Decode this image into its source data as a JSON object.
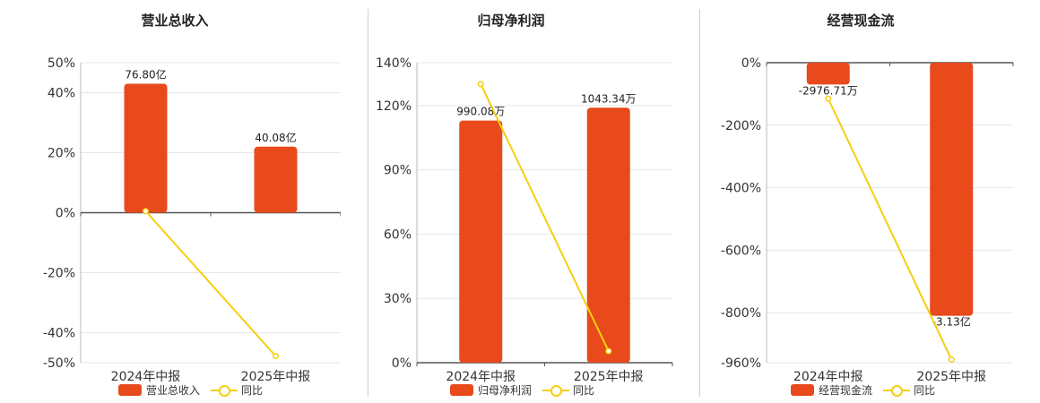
{
  "colors": {
    "bar": "#e84a1c",
    "line": "#f5cf0f",
    "grid": "#e6e6e6",
    "axis": "#555555"
  },
  "chart_data": [
    {
      "type": "bar",
      "title": "营业总收入",
      "categories": [
        "2024年中报",
        "2025年中报"
      ],
      "ylim": [
        -50,
        50
      ],
      "yticks": [
        50,
        40,
        20,
        0,
        -20,
        -40,
        -50
      ],
      "ytick_labels": [
        "50%",
        "40%",
        "20%",
        "0%",
        "-20%",
        "-40%",
        "-50%"
      ],
      "grid": true,
      "series": [
        {
          "name": "营业总收入",
          "type": "bar",
          "values": [
            43,
            22
          ],
          "labels": [
            "76.80亿",
            "40.08亿"
          ]
        },
        {
          "name": "同比",
          "type": "line",
          "values": [
            0.5,
            -47.8
          ]
        }
      ],
      "legend": {
        "position": "bottom",
        "bar_label": "营业总收入",
        "line_label": "同比"
      }
    },
    {
      "type": "bar",
      "title": "归母净利润",
      "categories": [
        "2024年中报",
        "2025年中报"
      ],
      "ylim": [
        0,
        140
      ],
      "yticks": [
        140,
        120,
        90,
        60,
        30,
        0
      ],
      "ytick_labels": [
        "140%",
        "120%",
        "90%",
        "60%",
        "30%",
        "0%"
      ],
      "grid": true,
      "series": [
        {
          "name": "归母净利润",
          "type": "bar",
          "values": [
            113,
            119
          ],
          "labels": [
            "990.08万",
            "1043.34万"
          ]
        },
        {
          "name": "同比",
          "type": "line",
          "values": [
            130,
            5.4
          ]
        }
      ],
      "legend": {
        "position": "bottom",
        "bar_label": "归母净利润",
        "line_label": "同比"
      }
    },
    {
      "type": "bar",
      "title": "经营现金流",
      "categories": [
        "2024年中报",
        "2025年中报"
      ],
      "ylim": [
        -960,
        0
      ],
      "yticks": [
        0,
        -200,
        -400,
        -600,
        -800,
        -960
      ],
      "ytick_labels": [
        "0%",
        "-200%",
        "-400%",
        "-600%",
        "-800%",
        "-960%"
      ],
      "grid": true,
      "series": [
        {
          "name": "经营现金流",
          "type": "bar",
          "values": [
            -70,
            -810
          ],
          "labels": [
            "-2976.71万",
            "-3.13亿"
          ]
        },
        {
          "name": "同比",
          "type": "line",
          "values": [
            -115,
            -950
          ]
        }
      ],
      "legend": {
        "position": "bottom",
        "bar_label": "经营现金流",
        "line_label": "同比"
      }
    }
  ]
}
